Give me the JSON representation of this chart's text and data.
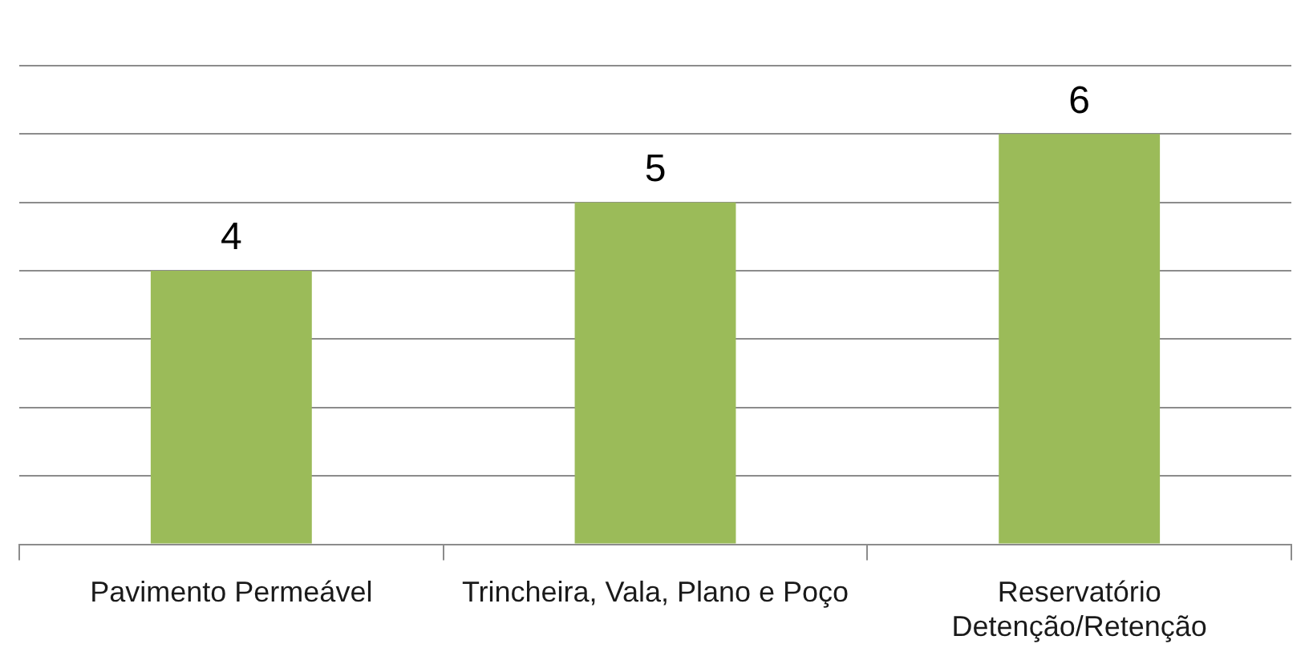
{
  "chart_data": {
    "type": "bar",
    "categories": [
      "Pavimento Permeável",
      "Trincheira, Vala, Plano e Poço",
      "Reservatório Detenção/Retenção"
    ],
    "values": [
      4,
      5,
      6
    ],
    "color": "#9bbb59",
    "data_labels": true,
    "ylim": [
      0,
      7
    ],
    "yticks": [
      {
        "value": 0,
        "label": null
      },
      {
        "value": 1,
        "label": null
      },
      {
        "value": 2,
        "label": null
      },
      {
        "value": 3,
        "label": null
      },
      {
        "value": 4,
        "label": null
      },
      {
        "value": 5,
        "label": null
      },
      {
        "value": 6,
        "label": null
      },
      {
        "value": 7,
        "label": null
      }
    ],
    "tick_labels": "x",
    "grid": "y",
    "legend": false
  }
}
